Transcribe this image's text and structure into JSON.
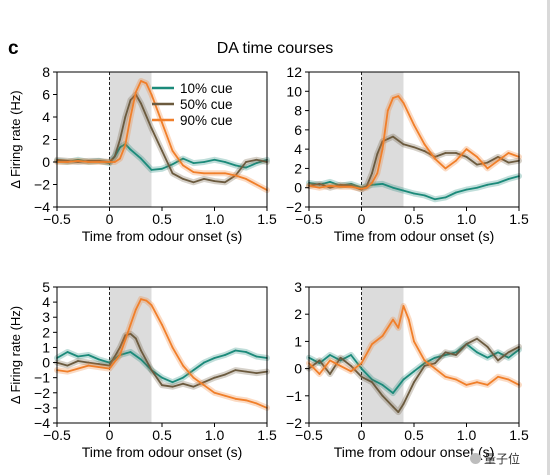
{
  "figure": {
    "panel_letter": "c",
    "title": "DA time courses",
    "watermark": "量子位"
  },
  "colors": {
    "cue10": "#1b8a7a",
    "cue50": "#6b5a3e",
    "cue90": "#f07f2a",
    "shade": "#dcdcdc",
    "axis": "#000000"
  },
  "chart_data": [
    {
      "type": "line",
      "xlabel": "Time from odour onset (s)",
      "ylabel": "Δ Firing rate (Hz)",
      "xlim": [
        -0.5,
        1.5
      ],
      "ylim": [
        -4,
        8
      ],
      "xticks": [
        -0.5,
        0,
        0.5,
        1.0,
        1.5
      ],
      "xtick_labels": [
        "−0.5",
        "0",
        "0.5",
        "1.0",
        "1.5"
      ],
      "yticks": [
        -4,
        -2,
        0,
        2,
        4,
        6,
        8
      ],
      "ytick_labels": [
        "−4",
        "−2",
        "0",
        "2",
        "4",
        "6",
        "8"
      ],
      "shaded_x": [
        0,
        0.4
      ],
      "onset_line_x": 0,
      "legend_placement": "top-right",
      "series": [
        {
          "name": "10% cue",
          "color_key": "cue10",
          "x": [
            -0.5,
            -0.4,
            -0.3,
            -0.2,
            -0.1,
            0,
            0.05,
            0.1,
            0.15,
            0.2,
            0.3,
            0.4,
            0.5,
            0.6,
            0.7,
            0.8,
            0.9,
            1.0,
            1.1,
            1.2,
            1.3,
            1.4,
            1.5
          ],
          "y": [
            0.1,
            0.0,
            0.2,
            0.0,
            0.1,
            -0.1,
            0.5,
            1.3,
            1.6,
            1.1,
            0.3,
            -0.7,
            -0.6,
            -0.2,
            0.3,
            -0.1,
            0.0,
            0.2,
            0.0,
            -0.3,
            -0.5,
            -0.1,
            0.2
          ]
        },
        {
          "name": "50% cue",
          "color_key": "cue50",
          "x": [
            -0.5,
            -0.4,
            -0.3,
            -0.2,
            -0.1,
            0,
            0.05,
            0.1,
            0.15,
            0.2,
            0.25,
            0.3,
            0.4,
            0.5,
            0.6,
            0.7,
            0.8,
            0.9,
            1.0,
            1.1,
            1.2,
            1.3,
            1.4,
            1.5
          ],
          "y": [
            0.2,
            0.1,
            0.0,
            0.1,
            0.1,
            0.0,
            0.5,
            2.0,
            4.0,
            5.5,
            6.0,
            5.2,
            3.0,
            1.0,
            -1.0,
            -1.5,
            -1.8,
            -1.5,
            -1.7,
            -1.8,
            -1.2,
            0.0,
            0.2,
            0.0
          ]
        },
        {
          "name": "90% cue",
          "color_key": "cue90",
          "x": [
            -0.5,
            -0.4,
            -0.3,
            -0.2,
            -0.1,
            0,
            0.05,
            0.1,
            0.15,
            0.2,
            0.25,
            0.3,
            0.35,
            0.4,
            0.5,
            0.6,
            0.7,
            0.8,
            0.9,
            1.0,
            1.1,
            1.2,
            1.3,
            1.4,
            1.5
          ],
          "y": [
            0.0,
            0.0,
            0.1,
            0.0,
            0.0,
            0.0,
            0.0,
            0.3,
            1.5,
            4.0,
            6.2,
            7.2,
            7.0,
            6.0,
            3.5,
            1.0,
            -0.3,
            -0.9,
            -1.0,
            -1.0,
            -1.0,
            -1.2,
            -1.5,
            -2.0,
            -2.5
          ]
        }
      ]
    },
    {
      "type": "line",
      "xlabel": "Time from odour onset (s)",
      "ylabel": "",
      "xlim": [
        -0.5,
        1.5
      ],
      "ylim": [
        -2,
        12
      ],
      "xticks": [
        -0.5,
        0,
        0.5,
        1.0,
        1.5
      ],
      "xtick_labels": [
        "−0.5",
        "0",
        "0.5",
        "1.0",
        "1.5"
      ],
      "yticks": [
        -2,
        0,
        2,
        4,
        6,
        8,
        10,
        12
      ],
      "ytick_labels": [
        "−2",
        "0",
        "2",
        "4",
        "6",
        "8",
        "10",
        "12"
      ],
      "shaded_x": [
        0,
        0.4
      ],
      "onset_line_x": 0,
      "series": [
        {
          "color_key": "cue10",
          "x": [
            -0.5,
            -0.4,
            -0.3,
            -0.2,
            -0.1,
            0,
            0.1,
            0.2,
            0.3,
            0.4,
            0.5,
            0.6,
            0.7,
            0.8,
            0.9,
            1.0,
            1.1,
            1.2,
            1.3,
            1.4,
            1.5
          ],
          "y": [
            0.5,
            0.3,
            0.6,
            0.2,
            0.4,
            0.0,
            0.3,
            0.4,
            0.0,
            -0.3,
            -0.6,
            -0.8,
            -1.2,
            -1.0,
            -0.5,
            -0.2,
            0.0,
            0.3,
            0.5,
            0.9,
            1.2
          ]
        },
        {
          "color_key": "cue50",
          "x": [
            -0.5,
            -0.4,
            -0.3,
            -0.2,
            -0.1,
            0,
            0.05,
            0.1,
            0.15,
            0.2,
            0.3,
            0.4,
            0.5,
            0.6,
            0.7,
            0.8,
            0.9,
            1.0,
            1.1,
            1.2,
            1.3,
            1.4,
            1.5
          ],
          "y": [
            0.2,
            0.4,
            0.0,
            0.3,
            0.2,
            -0.2,
            0.2,
            1.5,
            3.5,
            4.8,
            5.3,
            4.5,
            4.2,
            3.8,
            3.2,
            3.6,
            3.6,
            3.2,
            2.4,
            2.6,
            3.2,
            2.6,
            2.8
          ]
        },
        {
          "color_key": "cue90",
          "x": [
            -0.5,
            -0.4,
            -0.3,
            -0.2,
            -0.1,
            0,
            0.05,
            0.1,
            0.15,
            0.2,
            0.25,
            0.3,
            0.35,
            0.4,
            0.5,
            0.6,
            0.7,
            0.8,
            0.9,
            1.0,
            1.1,
            1.2,
            1.3,
            1.4,
            1.5
          ],
          "y": [
            0.2,
            0.0,
            0.2,
            0.1,
            0.1,
            -0.1,
            0.0,
            0.5,
            1.5,
            4.0,
            8.0,
            9.3,
            9.5,
            8.8,
            6.5,
            4.5,
            3.0,
            2.0,
            2.8,
            4.0,
            3.2,
            2.0,
            2.8,
            3.6,
            3.2
          ]
        }
      ]
    },
    {
      "type": "line",
      "xlabel": "Time from odour onset (s)",
      "ylabel": "Δ Firing rate (Hz)",
      "xlim": [
        -0.5,
        1.5
      ],
      "ylim": [
        -4,
        5
      ],
      "xticks": [
        -0.5,
        0,
        0.5,
        1.0,
        1.5
      ],
      "xtick_labels": [
        "−0.5",
        "0",
        "0.5",
        "1.0",
        "1.5"
      ],
      "yticks": [
        -4,
        -3,
        -2,
        -1,
        0,
        1,
        2,
        3,
        4,
        5
      ],
      "ytick_labels": [
        "−4",
        "−3",
        "−2",
        "−1",
        "0",
        "1",
        "2",
        "3",
        "4",
        "5"
      ],
      "shaded_x": [
        0,
        0.4
      ],
      "onset_line_x": 0,
      "series": [
        {
          "color_key": "cue10",
          "x": [
            -0.5,
            -0.4,
            -0.3,
            -0.2,
            -0.1,
            0,
            0.1,
            0.2,
            0.3,
            0.4,
            0.5,
            0.6,
            0.7,
            0.8,
            0.9,
            1.0,
            1.1,
            1.2,
            1.3,
            1.4,
            1.5
          ],
          "y": [
            0.3,
            0.7,
            0.4,
            0.5,
            0.2,
            0.0,
            0.5,
            0.7,
            0.2,
            -0.5,
            -1.0,
            -1.3,
            -1.0,
            -0.5,
            0.0,
            0.3,
            0.5,
            0.8,
            0.7,
            0.4,
            0.3
          ]
        },
        {
          "color_key": "cue50",
          "x": [
            -0.5,
            -0.4,
            -0.3,
            -0.2,
            -0.1,
            0,
            0.1,
            0.15,
            0.2,
            0.25,
            0.3,
            0.4,
            0.5,
            0.6,
            0.7,
            0.8,
            0.9,
            1.0,
            1.1,
            1.2,
            1.3,
            1.4,
            1.5
          ],
          "y": [
            0.0,
            -0.2,
            0.1,
            0.0,
            -0.1,
            -0.2,
            1.0,
            1.8,
            1.9,
            1.6,
            0.8,
            -0.5,
            -1.5,
            -1.6,
            -1.4,
            -1.6,
            -1.3,
            -1.0,
            -0.8,
            -0.5,
            -0.6,
            -0.7,
            -0.6
          ]
        },
        {
          "color_key": "cue90",
          "x": [
            -0.5,
            -0.4,
            -0.3,
            -0.2,
            -0.1,
            0,
            0.1,
            0.2,
            0.25,
            0.3,
            0.35,
            0.4,
            0.5,
            0.6,
            0.7,
            0.8,
            0.9,
            1.0,
            1.1,
            1.2,
            1.3,
            1.4,
            1.5
          ],
          "y": [
            -0.5,
            -0.6,
            -0.4,
            -0.2,
            -0.3,
            -0.4,
            0.5,
            2.5,
            3.5,
            4.2,
            4.1,
            3.8,
            2.5,
            1.0,
            -0.2,
            -1.0,
            -1.5,
            -2.0,
            -2.2,
            -2.4,
            -2.5,
            -2.7,
            -3.0
          ]
        }
      ]
    },
    {
      "type": "line",
      "xlabel": "Time from odour onset (s)",
      "ylabel": "",
      "xlim": [
        -0.5,
        1.5
      ],
      "ylim": [
        -2,
        3
      ],
      "xticks": [
        -0.5,
        0,
        0.5,
        1.0,
        1.5
      ],
      "xtick_labels": [
        "−0.5",
        "0",
        "0.5",
        "1.0",
        "1.5"
      ],
      "yticks": [
        -2,
        -1,
        0,
        1,
        2,
        3
      ],
      "ytick_labels": [
        "−2",
        "−1",
        "0",
        "1",
        "2",
        "3"
      ],
      "shaded_x": [
        0,
        0.4
      ],
      "onset_line_x": 0,
      "series": [
        {
          "color_key": "cue10",
          "x": [
            -0.5,
            -0.4,
            -0.3,
            -0.2,
            -0.1,
            0,
            0.1,
            0.2,
            0.3,
            0.4,
            0.5,
            0.6,
            0.7,
            0.8,
            0.9,
            1.0,
            1.1,
            1.2,
            1.3,
            1.4,
            1.5
          ],
          "y": [
            0.4,
            0.2,
            0.5,
            0.3,
            0.5,
            0.0,
            -0.4,
            -0.6,
            -0.9,
            -0.4,
            -0.1,
            0.2,
            0.4,
            0.5,
            0.6,
            0.9,
            0.6,
            0.4,
            0.6,
            0.4,
            0.7
          ]
        },
        {
          "color_key": "cue50",
          "x": [
            -0.5,
            -0.4,
            -0.3,
            -0.2,
            -0.1,
            0,
            0.1,
            0.2,
            0.3,
            0.35,
            0.4,
            0.5,
            0.6,
            0.7,
            0.8,
            0.9,
            1.0,
            1.1,
            1.2,
            1.3,
            1.4,
            1.5
          ],
          "y": [
            0.0,
            0.3,
            -0.2,
            0.4,
            0.1,
            -0.3,
            -0.5,
            -1.0,
            -1.4,
            -1.6,
            -1.3,
            -0.5,
            0.1,
            0.2,
            0.6,
            0.5,
            0.9,
            1.1,
            0.8,
            0.3,
            0.6,
            0.8
          ]
        },
        {
          "color_key": "cue90",
          "x": [
            -0.5,
            -0.4,
            -0.3,
            -0.2,
            -0.1,
            0,
            0.1,
            0.2,
            0.3,
            0.35,
            0.4,
            0.45,
            0.5,
            0.6,
            0.7,
            0.8,
            0.9,
            1.0,
            1.1,
            1.2,
            1.3,
            1.4,
            1.5
          ],
          "y": [
            0.2,
            -0.2,
            0.3,
            0.1,
            -0.1,
            0.2,
            0.9,
            1.2,
            1.8,
            1.5,
            2.3,
            1.8,
            1.0,
            0.3,
            0.0,
            -0.3,
            -0.4,
            -0.6,
            -0.5,
            -0.6,
            -0.3,
            -0.4,
            -0.6
          ]
        }
      ]
    }
  ]
}
